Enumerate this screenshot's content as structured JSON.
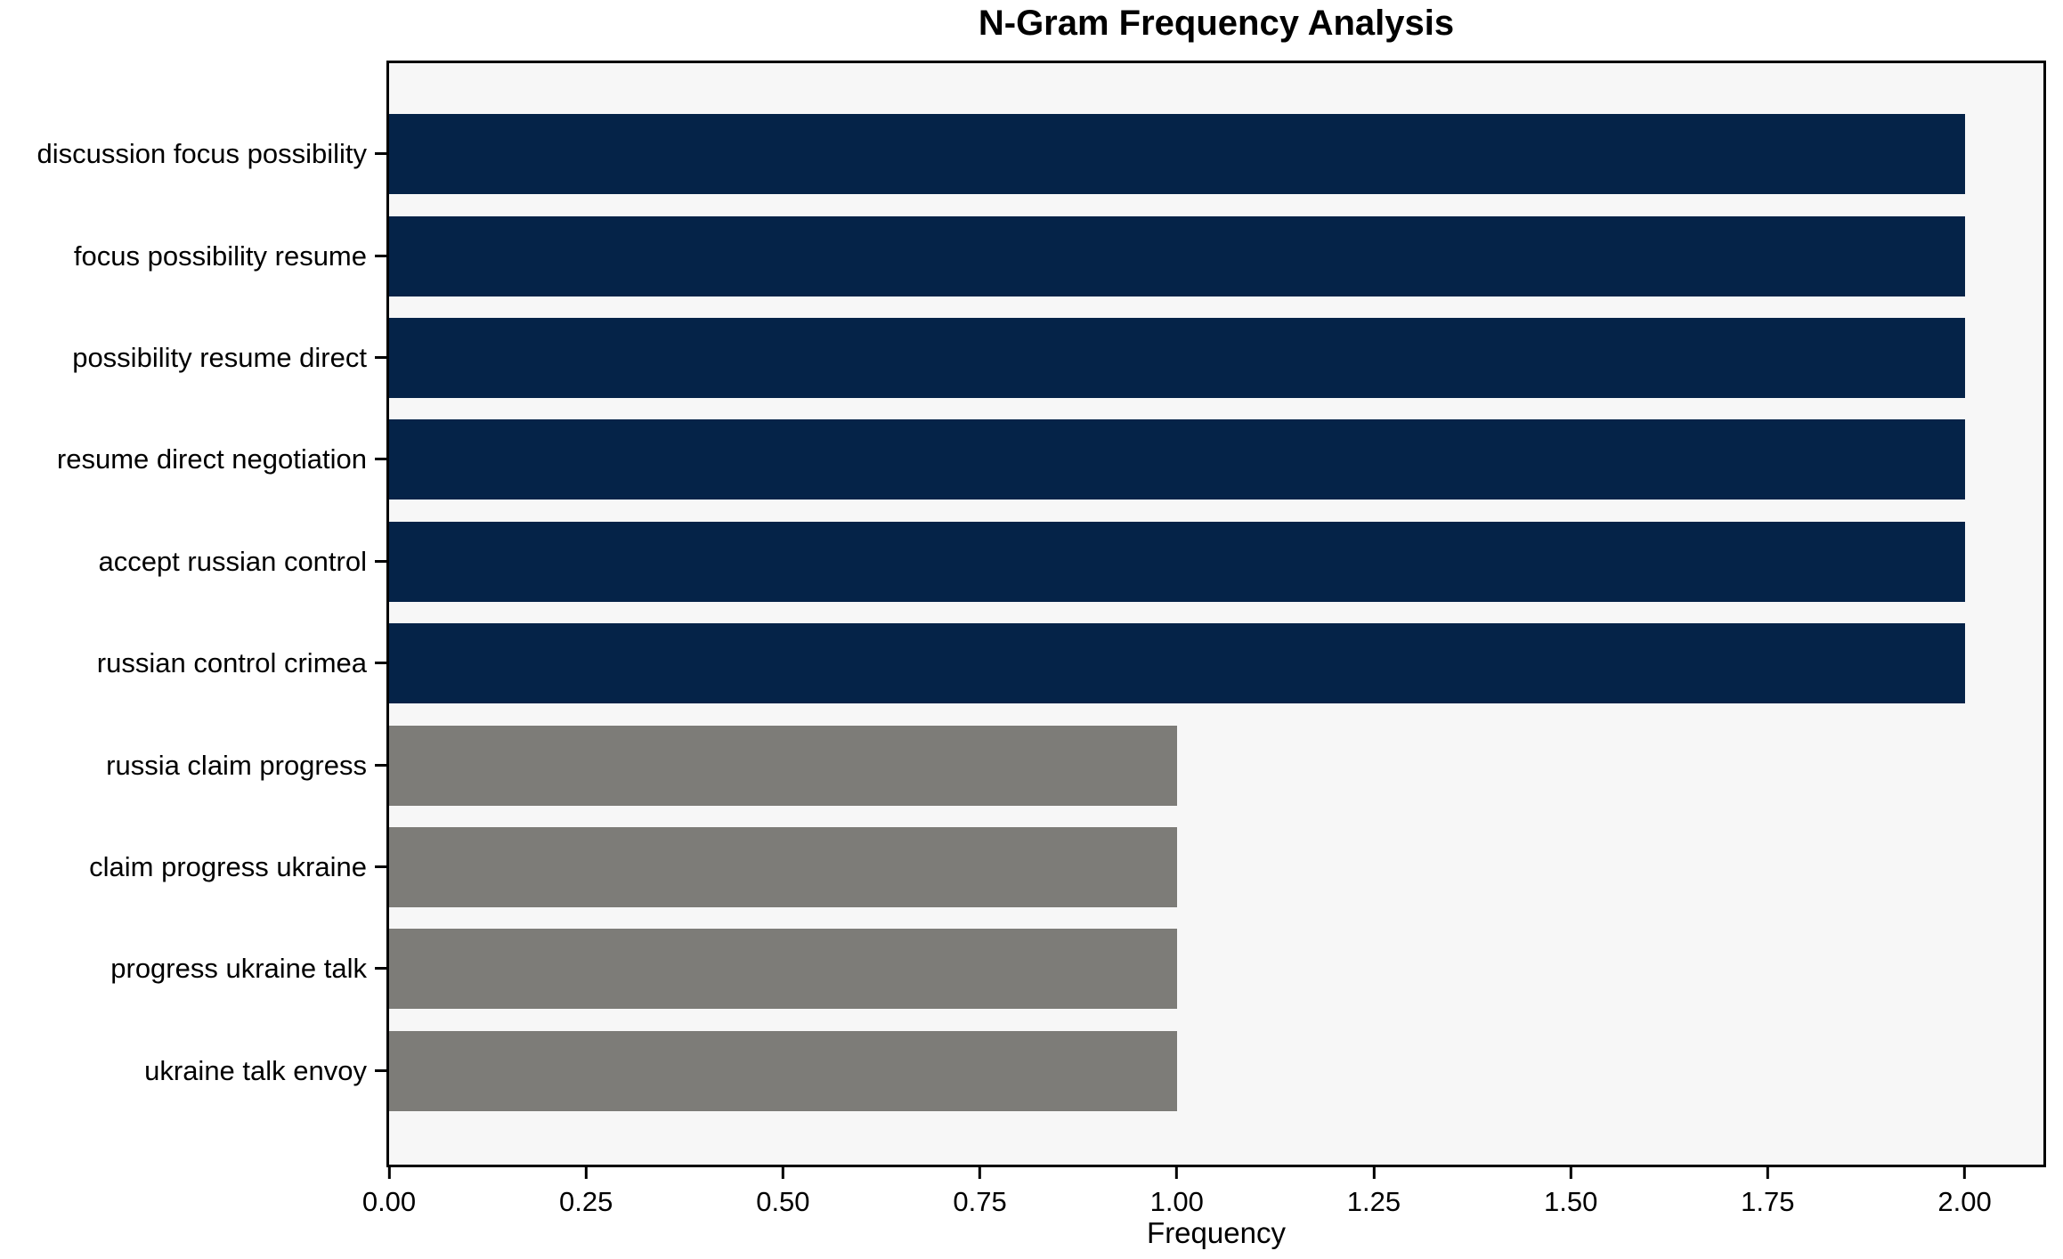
{
  "chart_data": {
    "type": "bar",
    "orientation": "horizontal",
    "title": "N-Gram Frequency Analysis",
    "xlabel": "Frequency",
    "ylabel": "",
    "categories": [
      "discussion focus possibility",
      "focus possibility resume",
      "possibility resume direct",
      "resume direct negotiation",
      "accept russian control",
      "russian control crimea",
      "russia claim progress",
      "claim progress ukraine",
      "progress ukraine talk",
      "ukraine talk envoy"
    ],
    "values": [
      2,
      2,
      2,
      2,
      2,
      2,
      1,
      1,
      1,
      1
    ],
    "bar_colors": [
      "#052348",
      "#052348",
      "#052348",
      "#052348",
      "#052348",
      "#052348",
      "#7d7c78",
      "#7d7c78",
      "#7d7c78",
      "#7d7c78"
    ],
    "xlim": [
      0,
      2.1
    ],
    "xtick_values": [
      0,
      0.25,
      0.5,
      0.75,
      1.0,
      1.25,
      1.5,
      1.75,
      2.0
    ],
    "xtick_labels": [
      "0.00",
      "0.25",
      "0.50",
      "0.75",
      "1.00",
      "1.25",
      "1.50",
      "1.75",
      "2.00"
    ],
    "grid": false,
    "legend": null,
    "plot_background": "#f7f7f7",
    "figure_background": "#ffffff",
    "axis_color": "#000000",
    "text_color": "#000000"
  }
}
